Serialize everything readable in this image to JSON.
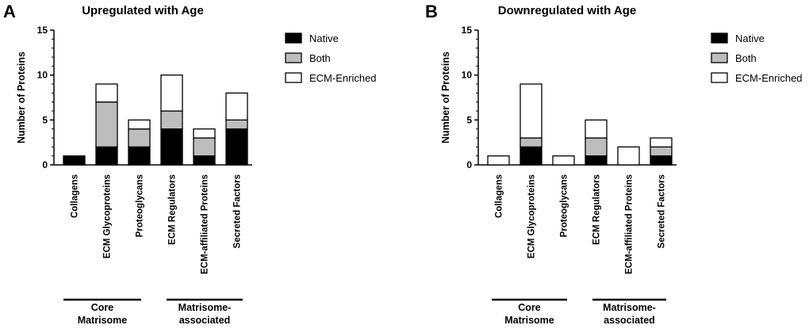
{
  "chart_data": [
    {
      "type": "bar",
      "stacked": true,
      "panel": "A",
      "title": "Upregulated with Age",
      "xlabel": "",
      "ylabel": "Number of Proteins",
      "ylim": [
        0,
        15
      ],
      "yticks": [
        0,
        5,
        10,
        15
      ],
      "categories": [
        "Collagens",
        "ECM Glycoproteins",
        "Proteoglycans",
        "ECM Regulators",
        "ECM-affiliated Proteins",
        "Secreted Factors"
      ],
      "series": [
        {
          "name": "Native",
          "color": "#000000",
          "values": [
            1,
            2,
            2,
            4,
            1,
            4
          ]
        },
        {
          "name": "Both",
          "color": "#bdbdbd",
          "values": [
            0,
            5,
            2,
            2,
            2,
            1
          ]
        },
        {
          "name": "ECM-Enriched",
          "color": "#ffffff",
          "values": [
            0,
            2,
            1,
            4,
            1,
            3
          ]
        }
      ],
      "groups": [
        {
          "label_line1": "Core",
          "label_line2": "Matrisome",
          "categories": [
            "Collagens",
            "ECM Glycoproteins",
            "Proteoglycans"
          ]
        },
        {
          "label_line1": "Matrisome-",
          "label_line2": "associated",
          "categories": [
            "ECM Regulators",
            "ECM-affiliated Proteins",
            "Secreted Factors"
          ]
        }
      ],
      "legend_position": "right"
    },
    {
      "type": "bar",
      "stacked": true,
      "panel": "B",
      "title": "Downregulated with Age",
      "xlabel": "",
      "ylabel": "Number of Proteins",
      "ylim": [
        0,
        15
      ],
      "yticks": [
        0,
        5,
        10,
        15
      ],
      "categories": [
        "Collagens",
        "ECM Glycoproteins",
        "Proteoglycans",
        "ECM Regulators",
        "ECM-affiliated Proteins",
        "Secreted Factors"
      ],
      "series": [
        {
          "name": "Native",
          "color": "#000000",
          "values": [
            0,
            2,
            0,
            1,
            0,
            1
          ]
        },
        {
          "name": "Both",
          "color": "#bdbdbd",
          "values": [
            0,
            1,
            0,
            2,
            0,
            1
          ]
        },
        {
          "name": "ECM-Enriched",
          "color": "#ffffff",
          "values": [
            1,
            6,
            1,
            2,
            2,
            1
          ]
        }
      ],
      "groups": [
        {
          "label_line1": "Core",
          "label_line2": "Matrisome",
          "categories": [
            "Collagens",
            "ECM Glycoproteins",
            "Proteoglycans"
          ]
        },
        {
          "label_line1": "Matrisome-",
          "label_line2": "associated",
          "categories": [
            "ECM Regulators",
            "ECM-affiliated Proteins",
            "Secreted Factors"
          ]
        }
      ],
      "legend_position": "right"
    }
  ]
}
